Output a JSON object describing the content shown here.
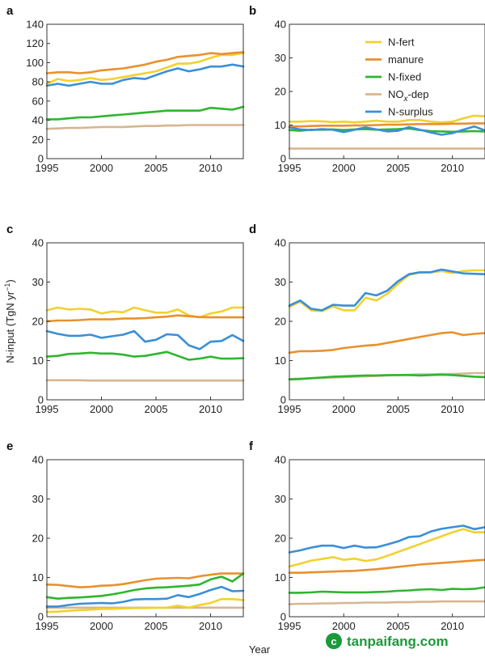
{
  "figure": {
    "xlabel": "Year",
    "ylabel": "N-input (TgN yr",
    "ylabel_sup": "−1",
    "ylabel_close": ")",
    "watermark": "tanpaifang.com"
  },
  "legend": {
    "placement": "top-right of panel b",
    "entries": [
      {
        "name": "N-fert",
        "color": "#f2d12e"
      },
      {
        "name": "manure",
        "color": "#e8912d"
      },
      {
        "name": "N-fixed",
        "color": "#2fb52f"
      },
      {
        "name": "NO",
        "sub": "x",
        "suffix": "-dep",
        "color": "#d7b590"
      },
      {
        "name": "N-surplus",
        "color": "#3a8fd8"
      }
    ]
  },
  "chart_data": [
    {
      "panel": "a",
      "type": "line",
      "x": [
        1995,
        1996,
        1997,
        1998,
        1999,
        2000,
        2001,
        2002,
        2003,
        2004,
        2005,
        2006,
        2007,
        2008,
        2009,
        2010,
        2011,
        2012,
        2013
      ],
      "xticks": [
        1995,
        2000,
        2005,
        2010
      ],
      "xlim": [
        1995,
        2013
      ],
      "ylim": [
        0,
        140
      ],
      "yticks": [
        0,
        20,
        40,
        60,
        80,
        100,
        120,
        140
      ],
      "series": [
        {
          "name": "N-fert",
          "color": "#f2d12e",
          "values": [
            78,
            83,
            81,
            82,
            84,
            82,
            83,
            85,
            87,
            89,
            91,
            95,
            99,
            99,
            101,
            105,
            108,
            108,
            110
          ]
        },
        {
          "name": "manure",
          "color": "#e8912d",
          "values": [
            89,
            90,
            90,
            89,
            90,
            92,
            93,
            94,
            96,
            98,
            101,
            103,
            106,
            107,
            108,
            110,
            109,
            110,
            111
          ]
        },
        {
          "name": "N-fixed",
          "color": "#2fb52f",
          "values": [
            41,
            41,
            42,
            43,
            43,
            44,
            45,
            46,
            47,
            48,
            49,
            50,
            50,
            50,
            50,
            53,
            52,
            51,
            54
          ]
        },
        {
          "name": "NOx-dep",
          "color": "#d7b590",
          "values": [
            31,
            31.5,
            32,
            32,
            32.5,
            33,
            33,
            33,
            33.5,
            34,
            34,
            34.5,
            34.5,
            35,
            35,
            35,
            35,
            35,
            35
          ]
        },
        {
          "name": "N-surplus",
          "color": "#3a8fd8",
          "values": [
            76,
            78,
            76,
            78,
            80,
            78,
            78,
            82,
            84,
            83,
            87,
            91,
            94,
            91,
            93,
            96,
            96,
            98,
            96
          ]
        }
      ]
    },
    {
      "panel": "b",
      "type": "line",
      "x": [
        1995,
        1996,
        1997,
        1998,
        1999,
        2000,
        2001,
        2002,
        2003,
        2004,
        2005,
        2006,
        2007,
        2008,
        2009,
        2010,
        2011,
        2012,
        2013
      ],
      "xticks": [
        1995,
        2000,
        2005,
        2010
      ],
      "xlim": [
        1995,
        2013
      ],
      "ylim": [
        0,
        40
      ],
      "yticks": [
        0,
        10,
        20,
        30,
        40
      ],
      "series": [
        {
          "name": "N-fert",
          "color": "#f2d12e",
          "values": [
            11,
            11,
            11.2,
            11.1,
            10.9,
            11,
            10.8,
            11,
            11.3,
            11,
            11,
            11.5,
            11.5,
            11,
            10.8,
            11,
            12,
            12.8,
            12.6
          ]
        },
        {
          "name": "manure",
          "color": "#e8912d",
          "values": [
            9.6,
            9.6,
            9.7,
            9.8,
            9.8,
            9.8,
            9.9,
            9.9,
            10,
            10.1,
            10.1,
            10.2,
            10.3,
            10.3,
            10.3,
            10.4,
            10.4,
            10.5,
            10.5
          ]
        },
        {
          "name": "N-fixed",
          "color": "#2fb52f",
          "values": [
            8.5,
            8.3,
            8.6,
            8.6,
            8.7,
            8.5,
            8.7,
            8.8,
            8.6,
            8.7,
            8.8,
            9,
            8.5,
            8.2,
            8.1,
            8,
            8.1,
            8.2,
            8.1
          ]
        },
        {
          "name": "NOx-dep",
          "color": "#d7b590",
          "values": [
            3,
            3,
            3,
            3,
            3,
            3,
            3,
            3,
            3,
            3,
            3,
            3,
            3,
            3,
            3,
            3,
            3,
            3,
            3
          ]
        },
        {
          "name": "N-surplus",
          "color": "#3a8fd8",
          "values": [
            9.3,
            8.7,
            8.5,
            8.8,
            8.6,
            7.9,
            8.6,
            9.3,
            8.7,
            8.1,
            8.3,
            9.4,
            8.6,
            7.8,
            7.1,
            7.6,
            8.6,
            9.6,
            8.4
          ]
        }
      ]
    },
    {
      "panel": "c",
      "type": "line",
      "x": [
        1995,
        1996,
        1997,
        1998,
        1999,
        2000,
        2001,
        2002,
        2003,
        2004,
        2005,
        2006,
        2007,
        2008,
        2009,
        2010,
        2011,
        2012,
        2013
      ],
      "xticks": [
        1995,
        2000,
        2005,
        2010
      ],
      "xlim": [
        1995,
        2013
      ],
      "ylim": [
        0,
        40
      ],
      "yticks": [
        0,
        10,
        20,
        30,
        40
      ],
      "series": [
        {
          "name": "N-fert",
          "color": "#f2d12e",
          "values": [
            22.8,
            23.5,
            23,
            23.2,
            23,
            22,
            22.5,
            22.3,
            23.5,
            22.8,
            22.2,
            22.2,
            23,
            21.5,
            21,
            22,
            22.5,
            23.5,
            23.5
          ]
        },
        {
          "name": "manure",
          "color": "#e8912d",
          "values": [
            20,
            20.2,
            20.2,
            20.3,
            20.5,
            20.5,
            20.5,
            20.7,
            20.7,
            20.8,
            21,
            21.2,
            21.5,
            21.3,
            21.1,
            21,
            21,
            21,
            21
          ]
        },
        {
          "name": "N-fixed",
          "color": "#2fb52f",
          "values": [
            11,
            11.2,
            11.7,
            11.8,
            12,
            11.8,
            11.8,
            11.5,
            11,
            11.2,
            11.7,
            12.2,
            11.2,
            10.2,
            10.5,
            11,
            10.5,
            10.5,
            10.6
          ]
        },
        {
          "name": "NOx-dep",
          "color": "#d7b590",
          "values": [
            5,
            5,
            5,
            5,
            4.9,
            4.9,
            4.9,
            4.9,
            4.9,
            4.9,
            4.9,
            4.9,
            4.9,
            4.9,
            4.9,
            4.9,
            4.9,
            4.9,
            4.9
          ]
        },
        {
          "name": "N-surplus",
          "color": "#3a8fd8",
          "values": [
            17.5,
            16.8,
            16.3,
            16.3,
            16.6,
            15.8,
            16.2,
            16.6,
            17.5,
            14.8,
            15.3,
            16.7,
            16.5,
            13.9,
            12.9,
            14.8,
            15,
            16.5,
            15
          ]
        }
      ]
    },
    {
      "panel": "d",
      "type": "line",
      "x": [
        1995,
        1996,
        1997,
        1998,
        1999,
        2000,
        2001,
        2002,
        2003,
        2004,
        2005,
        2006,
        2007,
        2008,
        2009,
        2010,
        2011,
        2012,
        2013
      ],
      "xticks": [
        1995,
        2000,
        2005,
        2010
      ],
      "xlim": [
        1995,
        2013
      ],
      "ylim": [
        0,
        40
      ],
      "yticks": [
        0,
        10,
        20,
        30,
        40
      ],
      "series": [
        {
          "name": "N-fert",
          "color": "#f2d12e",
          "values": [
            23.7,
            25,
            22.8,
            22.6,
            23.8,
            22.8,
            22.8,
            26,
            25.3,
            27,
            29.5,
            31.8,
            32.4,
            32.5,
            32.8,
            32.3,
            32.8,
            33,
            33
          ]
        },
        {
          "name": "manure",
          "color": "#e8912d",
          "values": [
            12,
            12.4,
            12.4,
            12.5,
            12.7,
            13.2,
            13.5,
            13.8,
            14,
            14.5,
            15,
            15.5,
            16,
            16.5,
            17,
            17.2,
            16.5,
            16.8,
            17
          ]
        },
        {
          "name": "N-fixed",
          "color": "#2fb52f",
          "values": [
            5.2,
            5.3,
            5.5,
            5.7,
            5.9,
            6.0,
            6.1,
            6.2,
            6.2,
            6.3,
            6.3,
            6.3,
            6.2,
            6.3,
            6.4,
            6.3,
            6.1,
            5.9,
            5.8
          ]
        },
        {
          "name": "NOx-dep",
          "color": "#d7b590",
          "values": [
            5.3,
            5.4,
            5.5,
            5.6,
            5.7,
            5.8,
            5.9,
            6.0,
            6.1,
            6.2,
            6.3,
            6.4,
            6.5,
            6.5,
            6.6,
            6.6,
            6.7,
            6.8,
            6.8
          ]
        },
        {
          "name": "N-surplus",
          "color": "#3a8fd8",
          "values": [
            24,
            25.3,
            23.2,
            22.8,
            24.2,
            24,
            24,
            27.2,
            26.6,
            27.8,
            30.2,
            32,
            32.5,
            32.5,
            33.2,
            32.7,
            32.2,
            32.1,
            32
          ]
        }
      ]
    },
    {
      "panel": "e",
      "type": "line",
      "x": [
        1995,
        1996,
        1997,
        1998,
        1999,
        2000,
        2001,
        2002,
        2003,
        2004,
        2005,
        2006,
        2007,
        2008,
        2009,
        2010,
        2011,
        2012,
        2013
      ],
      "xticks": [
        1995,
        2000,
        2005,
        2010
      ],
      "xlim": [
        1995,
        2013
      ],
      "ylim": [
        0,
        40
      ],
      "yticks": [
        0,
        10,
        20,
        30,
        40
      ],
      "series": [
        {
          "name": "N-fert",
          "color": "#f2d12e",
          "values": [
            1.2,
            1.3,
            1.5,
            1.7,
            1.8,
            2,
            2,
            2.1,
            2.2,
            2.2,
            2.3,
            2.3,
            2.8,
            2.3,
            3,
            3.5,
            4.5,
            4.5,
            4.2
          ]
        },
        {
          "name": "manure",
          "color": "#e8912d",
          "values": [
            8.2,
            8.1,
            7.8,
            7.5,
            7.6,
            7.9,
            8,
            8.3,
            8.8,
            9.3,
            9.7,
            9.8,
            9.9,
            9.8,
            10.3,
            10.7,
            11,
            11,
            11
          ]
        },
        {
          "name": "N-fixed",
          "color": "#2fb52f",
          "values": [
            5,
            4.6,
            4.8,
            4.9,
            5.1,
            5.3,
            5.7,
            6.2,
            6.8,
            7.2,
            7.4,
            7.5,
            7.7,
            7.9,
            8.2,
            9.5,
            10.2,
            9,
            11
          ]
        },
        {
          "name": "NOx-dep",
          "color": "#d7b590",
          "values": [
            2.3,
            2.3,
            2.3,
            2.3,
            2.3,
            2.3,
            2.3,
            2.3,
            2.3,
            2.3,
            2.3,
            2.3,
            2.3,
            2.3,
            2.3,
            2.3,
            2.3,
            2.3,
            2.3
          ]
        },
        {
          "name": "N-surplus",
          "color": "#3a8fd8",
          "values": [
            2.6,
            2.6,
            3.0,
            3.3,
            3.4,
            3.5,
            3.4,
            3.8,
            4.4,
            4.5,
            4.5,
            4.6,
            5.5,
            5,
            5.8,
            6.8,
            7.6,
            6.5,
            6.6
          ]
        }
      ]
    },
    {
      "panel": "f",
      "type": "line",
      "x": [
        1995,
        1996,
        1997,
        1998,
        1999,
        2000,
        2001,
        2002,
        2003,
        2004,
        2005,
        2006,
        2007,
        2008,
        2009,
        2010,
        2011,
        2012,
        2013
      ],
      "xticks": [
        1995,
        2000,
        2005,
        2010
      ],
      "xlim": [
        1995,
        2013
      ],
      "ylim": [
        0,
        40
      ],
      "yticks": [
        0,
        10,
        20,
        30,
        40
      ],
      "series": [
        {
          "name": "N-fert",
          "color": "#f2d12e",
          "values": [
            12.8,
            13.5,
            14.3,
            14.7,
            15.2,
            14.5,
            14.8,
            14.2,
            14.6,
            15.5,
            16.5,
            17.5,
            18.5,
            19.5,
            20.5,
            21.5,
            22.3,
            21.5,
            21.5
          ]
        },
        {
          "name": "manure",
          "color": "#e8912d",
          "values": [
            11.2,
            11.2,
            11.3,
            11.4,
            11.5,
            11.6,
            11.7,
            11.9,
            12.1,
            12.4,
            12.7,
            13,
            13.3,
            13.5,
            13.7,
            13.9,
            14.1,
            14.3,
            14.5
          ]
        },
        {
          "name": "N-fixed",
          "color": "#2fb52f",
          "values": [
            6.1,
            6.1,
            6.2,
            6.4,
            6.3,
            6.2,
            6.2,
            6.2,
            6.3,
            6.4,
            6.6,
            6.7,
            6.9,
            7,
            6.8,
            7.1,
            7,
            7.1,
            7.5
          ]
        },
        {
          "name": "NOx-dep",
          "color": "#d7b590",
          "values": [
            3.2,
            3.3,
            3.3,
            3.4,
            3.4,
            3.5,
            3.5,
            3.6,
            3.6,
            3.6,
            3.7,
            3.7,
            3.8,
            3.8,
            3.9,
            3.9,
            3.9,
            3.9,
            3.9
          ]
        },
        {
          "name": "N-surplus",
          "color": "#3a8fd8",
          "values": [
            16.4,
            16.9,
            17.6,
            18.1,
            18.1,
            17.5,
            18.1,
            17.6,
            17.7,
            18.4,
            19.2,
            20.3,
            20.5,
            21.7,
            22.4,
            22.8,
            23.2,
            22.3,
            22.8
          ]
        }
      ]
    }
  ]
}
